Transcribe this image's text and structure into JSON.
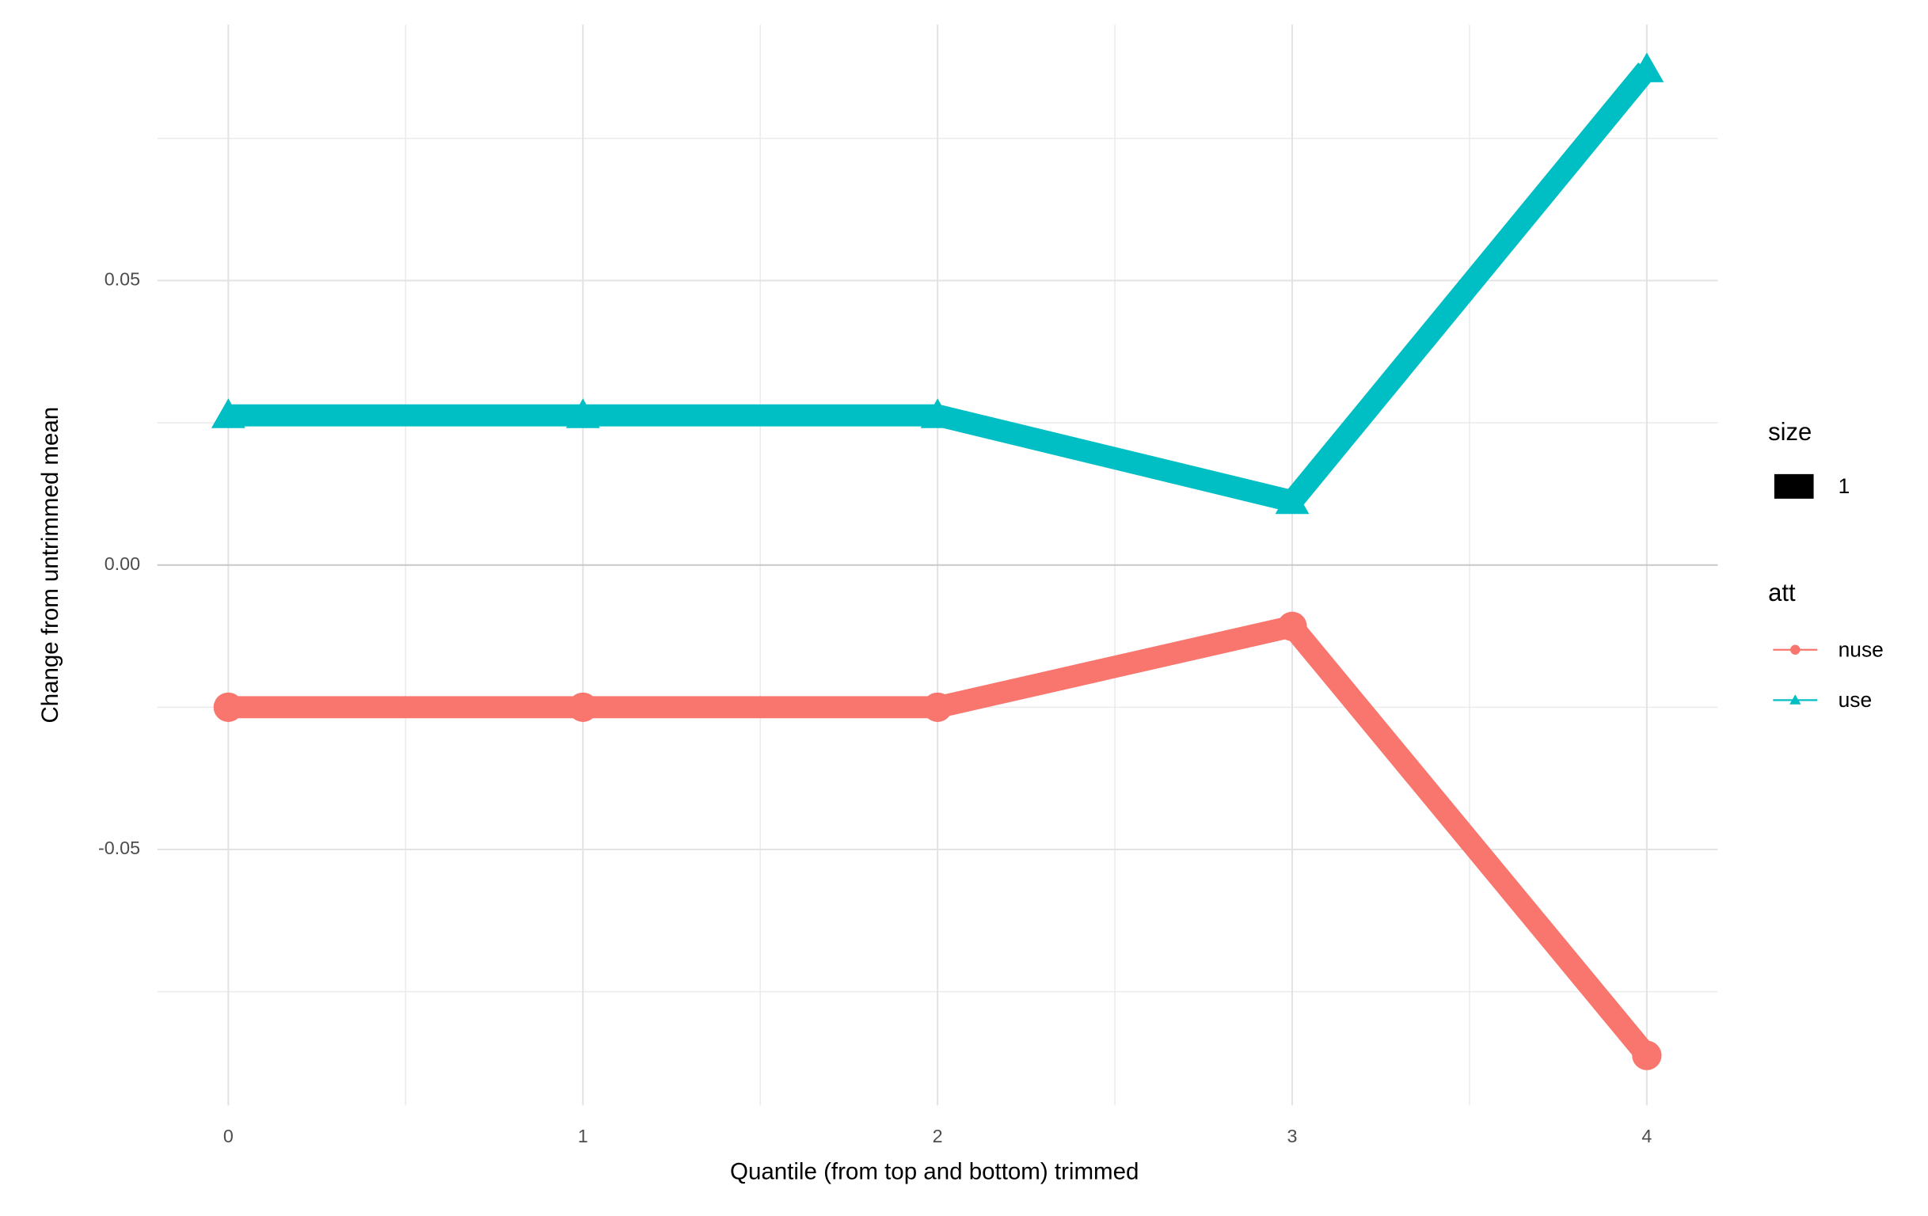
{
  "chart_data": {
    "type": "line",
    "x_label": "Quantile (from top and bottom) trimmed",
    "y_label": "Change from untrimmed mean",
    "x": [
      0,
      1,
      2,
      3,
      4
    ],
    "series": [
      {
        "name": "nuse",
        "color": "#F8766D",
        "marker": "circle",
        "values": [
          -0.025,
          -0.025,
          -0.025,
          -0.0108,
          -0.0862
        ]
      },
      {
        "name": "use",
        "color": "#00BFC4",
        "marker": "triangle",
        "values": [
          0.0263,
          0.0263,
          0.0263,
          0.0112,
          0.0871
        ]
      }
    ],
    "xlim": [
      -0.2,
      4.2
    ],
    "xticks": [
      0,
      1,
      2,
      3,
      4
    ],
    "minor_xticks": [
      0.5,
      1.5,
      2.5,
      3.5
    ],
    "ylim": [
      -0.095,
      0.095
    ],
    "yticks": [
      {
        "value": -0.05,
        "label": "-0.05"
      },
      {
        "value": 0,
        "label": "0.00"
      },
      {
        "value": 0.05,
        "label": "0.05"
      }
    ],
    "minor_yticks": [
      -0.075,
      -0.025,
      0.025,
      0.075
    ],
    "grid": true,
    "size_legend": {
      "title": "size",
      "labels": [
        "1"
      ]
    },
    "legend_title": "att"
  }
}
